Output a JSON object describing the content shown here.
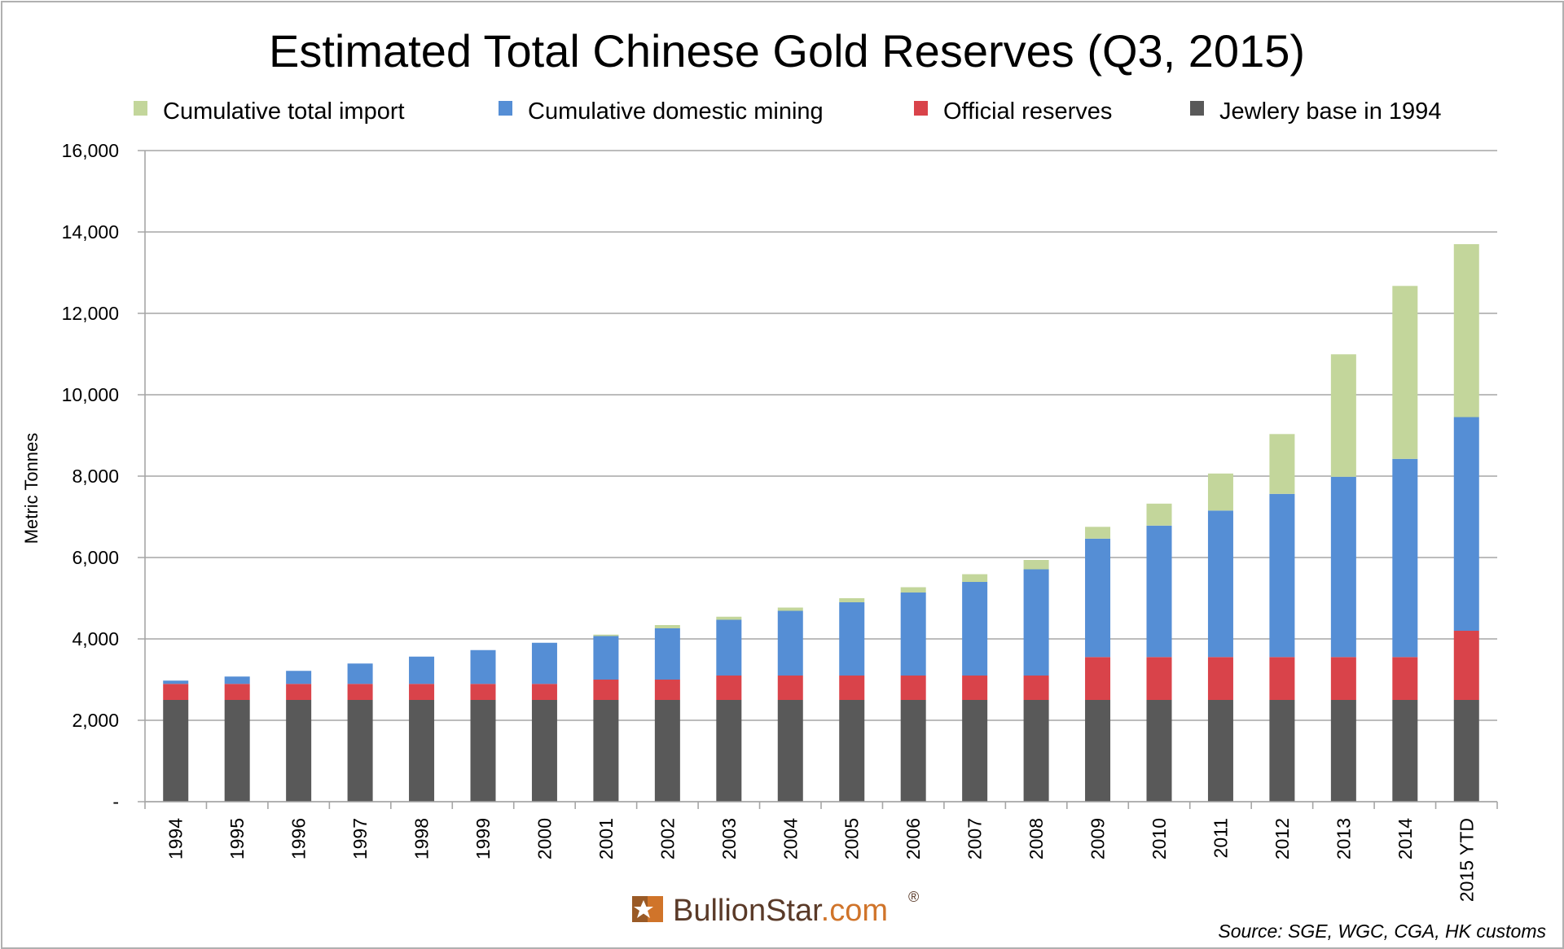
{
  "chart_data": {
    "type": "bar",
    "stacked": true,
    "title": "Estimated Total Chinese Gold Reserves (Q3, 2015)",
    "xlabel": "",
    "ylabel": "Metric Tonnes",
    "ylim": [
      0,
      16000
    ],
    "yticks": [
      0,
      2000,
      4000,
      6000,
      8000,
      10000,
      12000,
      14000,
      16000
    ],
    "ytick_labels": [
      "-",
      "2,000",
      "4,000",
      "6,000",
      "8,000",
      "10,000",
      "12,000",
      "14,000",
      "16,000"
    ],
    "grid": true,
    "legend_position": "top",
    "categories": [
      "1994",
      "1995",
      "1996",
      "1997",
      "1998",
      "1999",
      "2000",
      "2001",
      "2002",
      "2003",
      "2004",
      "2005",
      "2006",
      "2007",
      "2008",
      "2009",
      "2010",
      "2011",
      "2012",
      "2013",
      "2014",
      "2015 YTD"
    ],
    "series": [
      {
        "name": "Jewlery base in 1994",
        "color": "#595959",
        "values": [
          2500,
          2500,
          2500,
          2500,
          2500,
          2500,
          2500,
          2500,
          2500,
          2500,
          2500,
          2500,
          2500,
          2500,
          2500,
          2500,
          2500,
          2500,
          2500,
          2500,
          2500,
          2500
        ]
      },
      {
        "name": "Official reserves",
        "color": "#D9434A",
        "values": [
          395,
          395,
          395,
          395,
          395,
          395,
          395,
          500,
          500,
          600,
          600,
          600,
          600,
          600,
          600,
          1054,
          1054,
          1054,
          1054,
          1054,
          1054,
          1700
        ]
      },
      {
        "name": "Cumulative domestic mining",
        "color": "#558ED5",
        "values": [
          80,
          180,
          320,
          500,
          670,
          830,
          1010,
          1070,
          1260,
          1370,
          1590,
          1800,
          2040,
          2300,
          2610,
          2910,
          3230,
          3600,
          4010,
          4430,
          4870,
          5250
        ]
      },
      {
        "name": "Cumulative total import",
        "color": "#C3D69B",
        "values": [
          0,
          0,
          0,
          0,
          0,
          0,
          0,
          35,
          80,
          75,
          80,
          100,
          130,
          190,
          230,
          290,
          540,
          910,
          1470,
          3010,
          4250,
          4250
        ]
      }
    ],
    "legend_order": [
      "Cumulative total import",
      "Cumulative domestic mining",
      "Official reserves",
      "Jewlery base in 1994"
    ],
    "source": "Source: SGE, WGC, CGA, HK customs"
  },
  "branding": {
    "name_part1": "BullionStar",
    "name_part2": ".com",
    "registered_mark": "®",
    "logo_icon": "star-b-logo-icon",
    "primary_color": "#5a3a28",
    "accent_color": "#d0742a"
  },
  "colors": {
    "gridline": "#a6a6a6",
    "axis": "#a6a6a6"
  }
}
